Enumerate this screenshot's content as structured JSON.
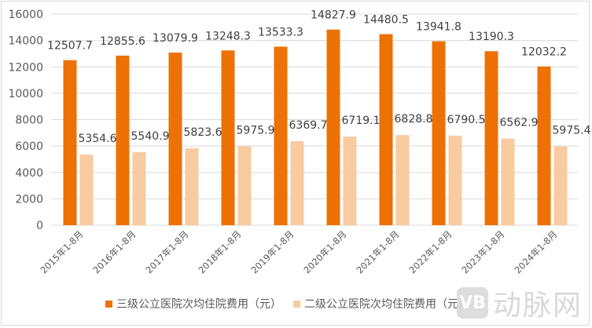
{
  "chart_data": {
    "type": "bar",
    "title": "",
    "xlabel": "",
    "ylabel": "",
    "ylim": [
      0,
      16000
    ],
    "yticks": [
      0,
      2000,
      4000,
      6000,
      8000,
      10000,
      12000,
      14000,
      16000
    ],
    "grid": true,
    "legend_position": "bottom",
    "categories": [
      "2015年1-8月",
      "2016年1-8月",
      "2017年1-8月",
      "2018年1-8月",
      "2019年1-8月",
      "2020年1-8月",
      "2021年1-8月",
      "2022年1-8月",
      "2023年1-8月",
      "2024年1-8月"
    ],
    "series": [
      {
        "name": "三级公立医院次均住院费用（元）",
        "color": "#ED7104",
        "values": [
          12507.7,
          12855.6,
          13079.9,
          13248.3,
          13533.3,
          14827.9,
          14480.5,
          13941.8,
          13190.3,
          12032.2
        ]
      },
      {
        "name": "二级公立医院次均住院费用（元）",
        "color": "#F8CBA0",
        "values": [
          5354.6,
          5540.9,
          5823.6,
          5975.9,
          6369.7,
          6719.1,
          6828.8,
          6790.5,
          6562.9,
          5975.4
        ]
      }
    ]
  },
  "watermark": {
    "logo": "VB",
    "text": "动脉网"
  },
  "colors": {
    "grid": "#d9d9d9",
    "axis_text": "#595959",
    "label_text": "#404040"
  }
}
